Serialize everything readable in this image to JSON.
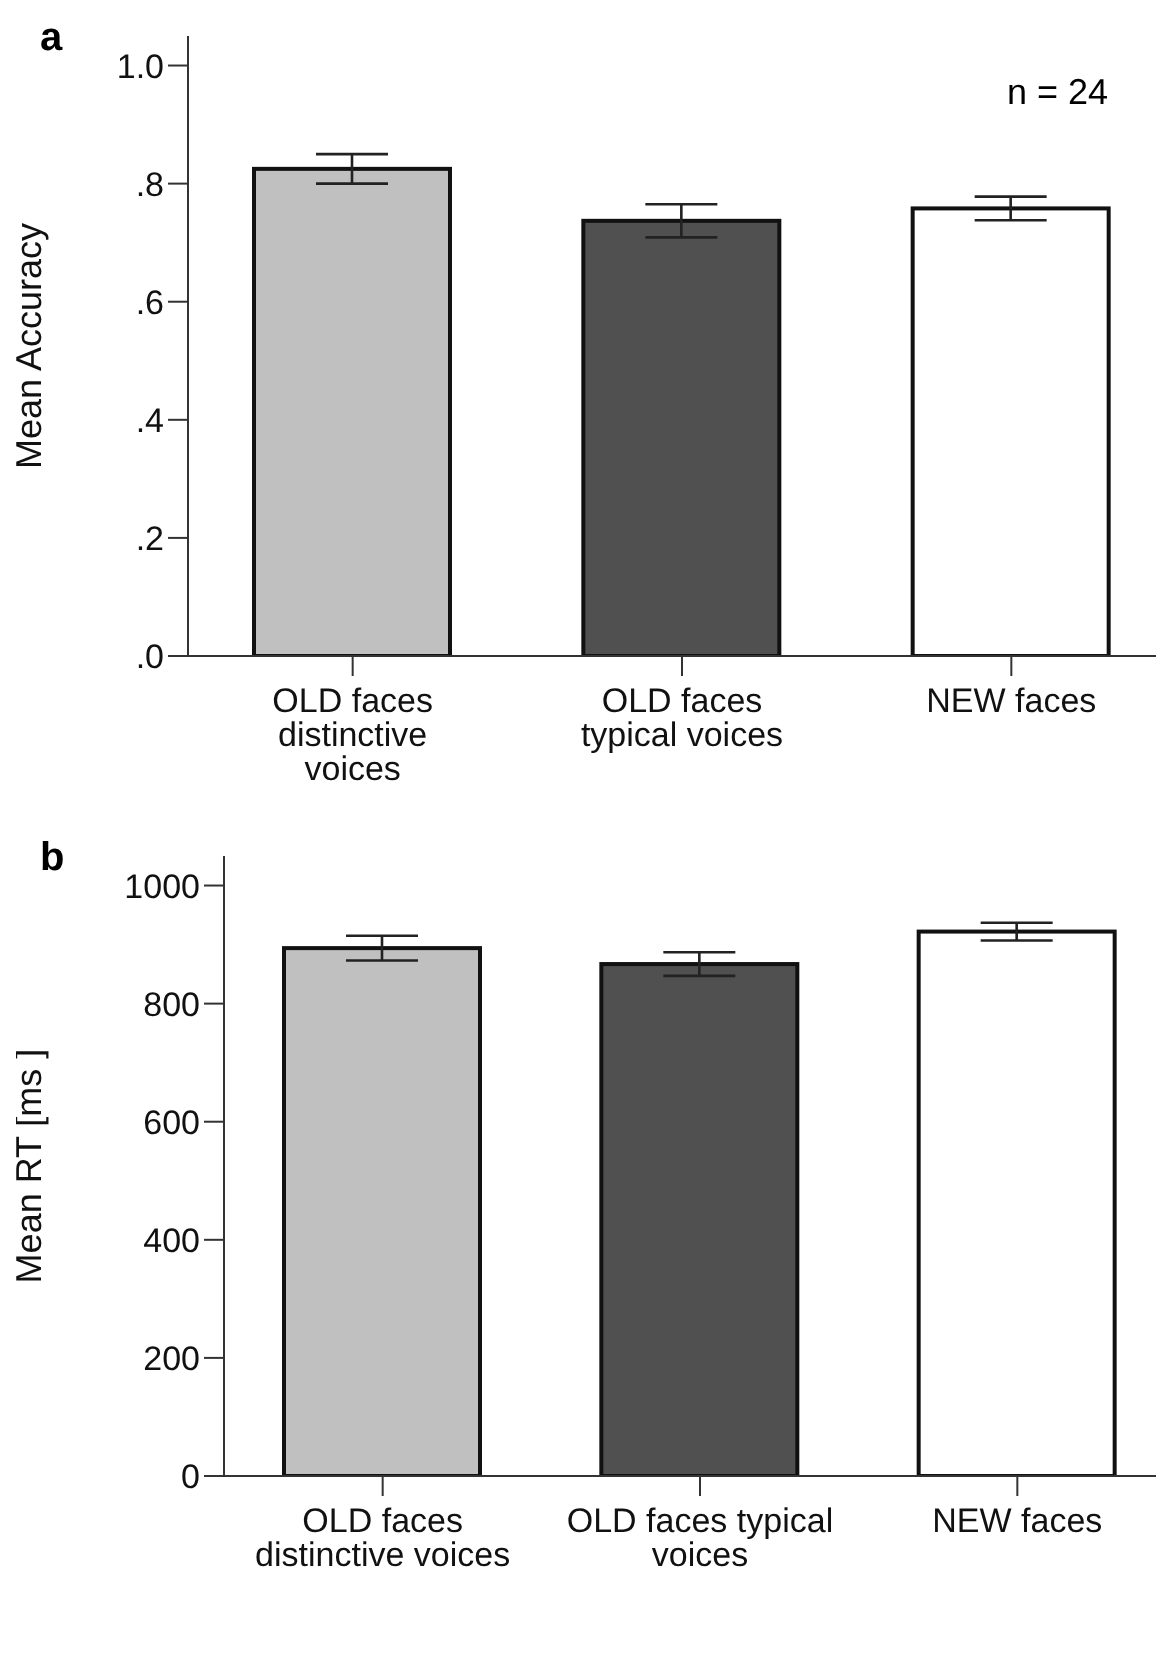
{
  "chart_data": [
    {
      "type": "bar",
      "title": "a",
      "ylabel": "Mean Accuracy",
      "categories": [
        "OLD faces distinctive voices",
        "OLD faces typical voices",
        "NEW faces"
      ],
      "values": [
        0.825,
        0.737,
        0.758
      ],
      "colors": [
        "#c0c0c0",
        "#505050",
        "#ffffff"
      ],
      "errors": [
        0.025,
        0.028,
        0.02
      ],
      "ylim": [
        0,
        1.05
      ],
      "yticks": [
        {
          "value": 0,
          "label": ".0"
        },
        {
          "value": 0.2,
          "label": ".2"
        },
        {
          "value": 0.4,
          "label": ".4"
        },
        {
          "value": 0.6,
          "label": ".6"
        },
        {
          "value": 0.8,
          "label": ".8"
        },
        {
          "value": 1,
          "label": "1.0"
        }
      ],
      "grid": false,
      "legend": false,
      "annotations": [
        "n = 24"
      ]
    },
    {
      "type": "bar",
      "title": "b",
      "ylabel": "Mean RT [ms ]",
      "categories": [
        "OLD faces distinctive voices",
        "OLD faces typical voices",
        "NEW faces"
      ],
      "values": [
        894,
        867,
        922
      ],
      "colors": [
        "#c0c0c0",
        "#505050",
        "#ffffff"
      ],
      "errors": [
        21,
        20,
        15
      ],
      "ylim": [
        0,
        1050
      ],
      "yticks": [
        0,
        200,
        400,
        600,
        800,
        1000
      ],
      "grid": false,
      "legend": false
    }
  ]
}
